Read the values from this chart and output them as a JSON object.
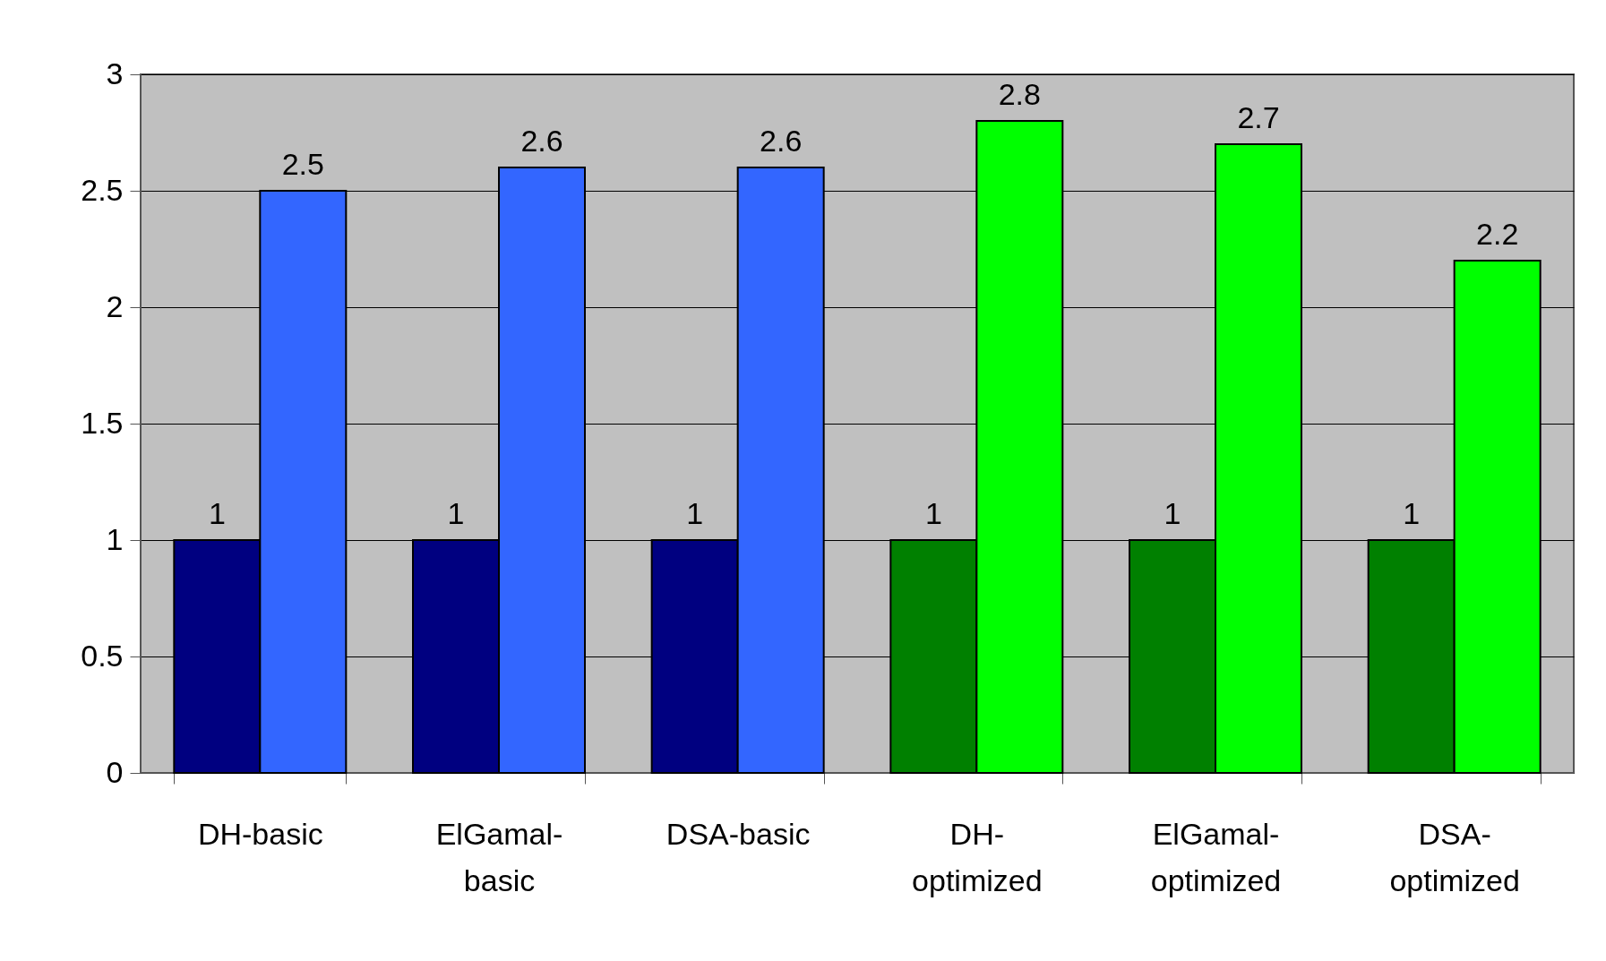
{
  "chart_data": {
    "type": "bar",
    "categories": [
      "DH-basic",
      "ElGamal-basic",
      "DSA-basic",
      "DH-optimized",
      "ElGamal-optimized",
      "DSA-optimized"
    ],
    "series": [
      {
        "colors": [
          "#000080",
          "#000080",
          "#000080",
          "#008000",
          "#008000",
          "#008000"
        ],
        "values": [
          1,
          1,
          1,
          1,
          1,
          1
        ]
      },
      {
        "colors": [
          "#3366ff",
          "#3366ff",
          "#3366ff",
          "#00ff00",
          "#00ff00",
          "#00ff00"
        ],
        "values": [
          2.5,
          2.6,
          2.6,
          2.8,
          2.7,
          2.2
        ]
      }
    ],
    "ylim": [
      0,
      3
    ],
    "yticks": [
      0,
      0.5,
      1,
      1.5,
      2,
      2.5,
      3
    ],
    "grid": "y",
    "data_labels": true
  }
}
